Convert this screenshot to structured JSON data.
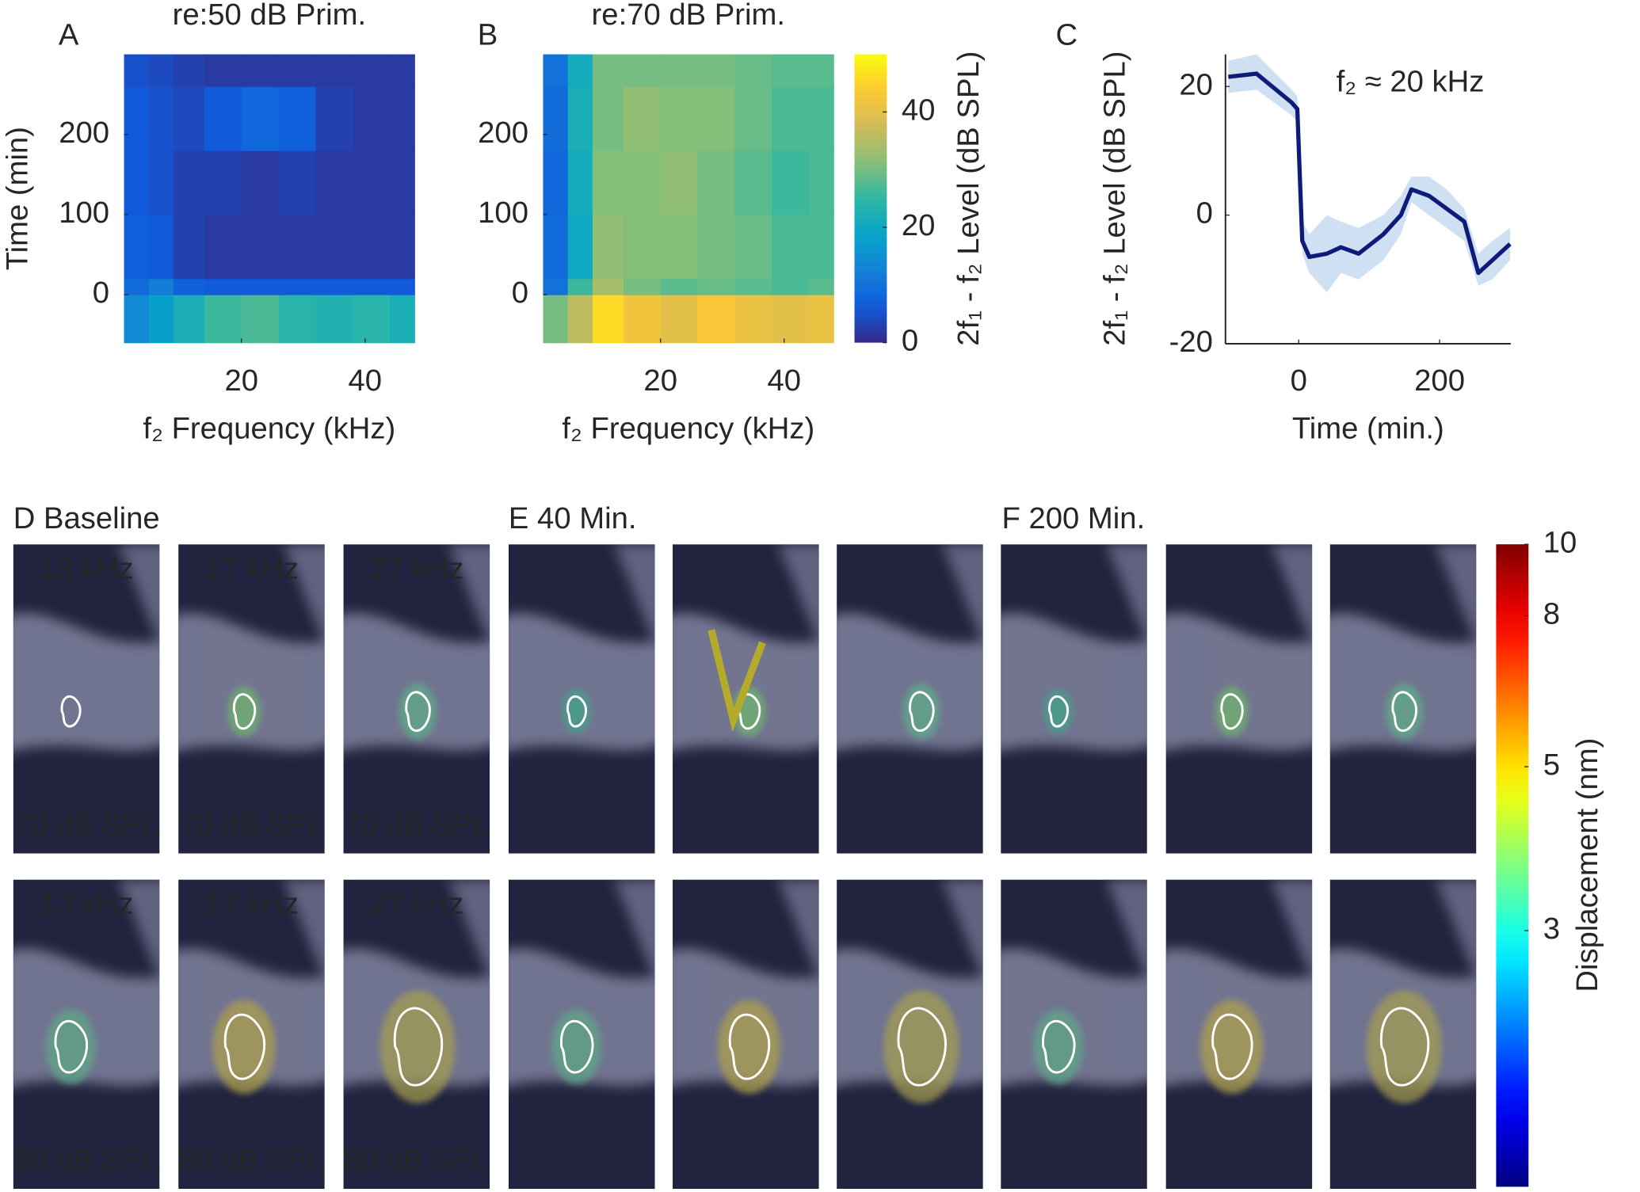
{
  "chart_data": [
    {
      "type": "heatmap",
      "panel_label": "A",
      "title": "re:50 dB Prim.",
      "x_label": "f₂ Frequency (kHz)",
      "y_label": "Time (min)",
      "xbins": [
        1,
        5,
        9,
        14,
        20,
        26,
        32,
        38,
        44,
        48
      ],
      "ybins": [
        -60,
        0,
        20,
        100,
        180,
        260,
        300
      ],
      "values": [
        [
          14,
          18,
          22,
          26,
          27,
          24,
          23,
          24,
          22
        ],
        [
          9,
          12,
          7,
          6,
          6,
          6,
          6,
          6,
          6
        ],
        [
          7,
          6,
          3,
          2,
          2,
          2,
          2,
          2,
          2
        ],
        [
          6,
          5,
          3,
          3,
          2,
          3,
          2,
          2,
          2
        ],
        [
          6,
          5,
          4,
          6,
          8,
          7,
          3,
          2,
          2
        ],
        [
          5,
          4,
          3,
          2,
          2,
          2,
          2,
          2,
          2
        ]
      ],
      "xlim": [
        1,
        48
      ],
      "ylim": [
        -60,
        300
      ],
      "xticks": [
        20,
        40
      ],
      "yticks": [
        0,
        100,
        200
      ],
      "clim": [
        0,
        50
      ],
      "colormap": "parula"
    },
    {
      "type": "heatmap",
      "panel_label": "B",
      "title": "re:70 dB Prim.",
      "x_label": "f₂ Frequency (kHz)",
      "xbins": [
        1,
        5,
        9,
        14,
        20,
        26,
        32,
        38,
        44,
        48
      ],
      "ybins": [
        -60,
        0,
        20,
        100,
        180,
        260,
        300
      ],
      "values": [
        [
          30,
          36,
          46,
          42,
          40,
          43,
          41,
          40,
          41
        ],
        [
          10,
          26,
          34,
          30,
          28,
          29,
          28,
          27,
          28
        ],
        [
          9,
          20,
          32,
          31,
          31,
          30,
          29,
          27,
          27
        ],
        [
          8,
          21,
          31,
          31,
          32,
          30,
          28,
          26,
          27
        ],
        [
          9,
          22,
          30,
          32,
          31,
          31,
          29,
          27,
          27
        ],
        [
          10,
          21,
          30,
          30,
          30,
          30,
          29,
          28,
          28
        ]
      ],
      "xlim": [
        1,
        48
      ],
      "ylim": [
        -60,
        300
      ],
      "xticks": [
        20,
        40
      ],
      "yticks": [
        0,
        100,
        200
      ],
      "clim": [
        0,
        50
      ],
      "colormap": "parula",
      "colorbar": {
        "label": "2f₁ - f₂ Level (dB SPL)",
        "ticks": [
          0,
          20,
          40
        ]
      }
    },
    {
      "type": "line",
      "panel_label": "C",
      "x_label": "Time (min.)",
      "y_label": "2f₁ - f₂ Level (dB SPL)",
      "annotation": "f₂ ≈ 20 kHz",
      "x": [
        -100,
        -60,
        -10,
        -2,
        5,
        15,
        40,
        60,
        85,
        120,
        145,
        160,
        185,
        210,
        235,
        255,
        275,
        300
      ],
      "series": [
        {
          "color": "#0c1c78",
          "band_color": "#cfe0f3",
          "values": [
            21.5,
            22,
            17.5,
            16.5,
            -4,
            -6.5,
            -6,
            -5,
            -6,
            -3,
            0,
            4,
            3,
            1,
            -1,
            -9,
            -7,
            -4.5
          ],
          "lower": [
            19,
            19.5,
            15.5,
            14.5,
            -6,
            -9,
            -12,
            -9,
            -10,
            -7,
            -3,
            2,
            0,
            -2,
            -4,
            -11,
            -10,
            -7
          ],
          "upper": [
            24,
            25,
            19.5,
            18.5,
            -1,
            -3,
            0,
            -1,
            -2,
            0,
            3,
            6,
            6,
            4,
            1,
            -6,
            -4,
            -2
          ]
        }
      ],
      "xlim": [
        -104,
        301
      ],
      "ylim": [
        -20,
        25
      ],
      "xticks": [
        0,
        200
      ],
      "yticks": [
        -20,
        0,
        20
      ]
    },
    {
      "type": "colorbar",
      "label": "Displacement (nm)",
      "log": true,
      "clim": [
        1.35,
        10
      ],
      "ticks": [
        3,
        5,
        8,
        10
      ],
      "colormap": "jet"
    }
  ],
  "image_panels": {
    "groups": [
      "D Baseline",
      "E 40 Min.",
      "F 200 Min."
    ],
    "frequencies": [
      "13 kHz",
      "17 kHz",
      "27 kHz"
    ],
    "levels": [
      "70 dB SPL",
      "80 dB SPL"
    ]
  }
}
